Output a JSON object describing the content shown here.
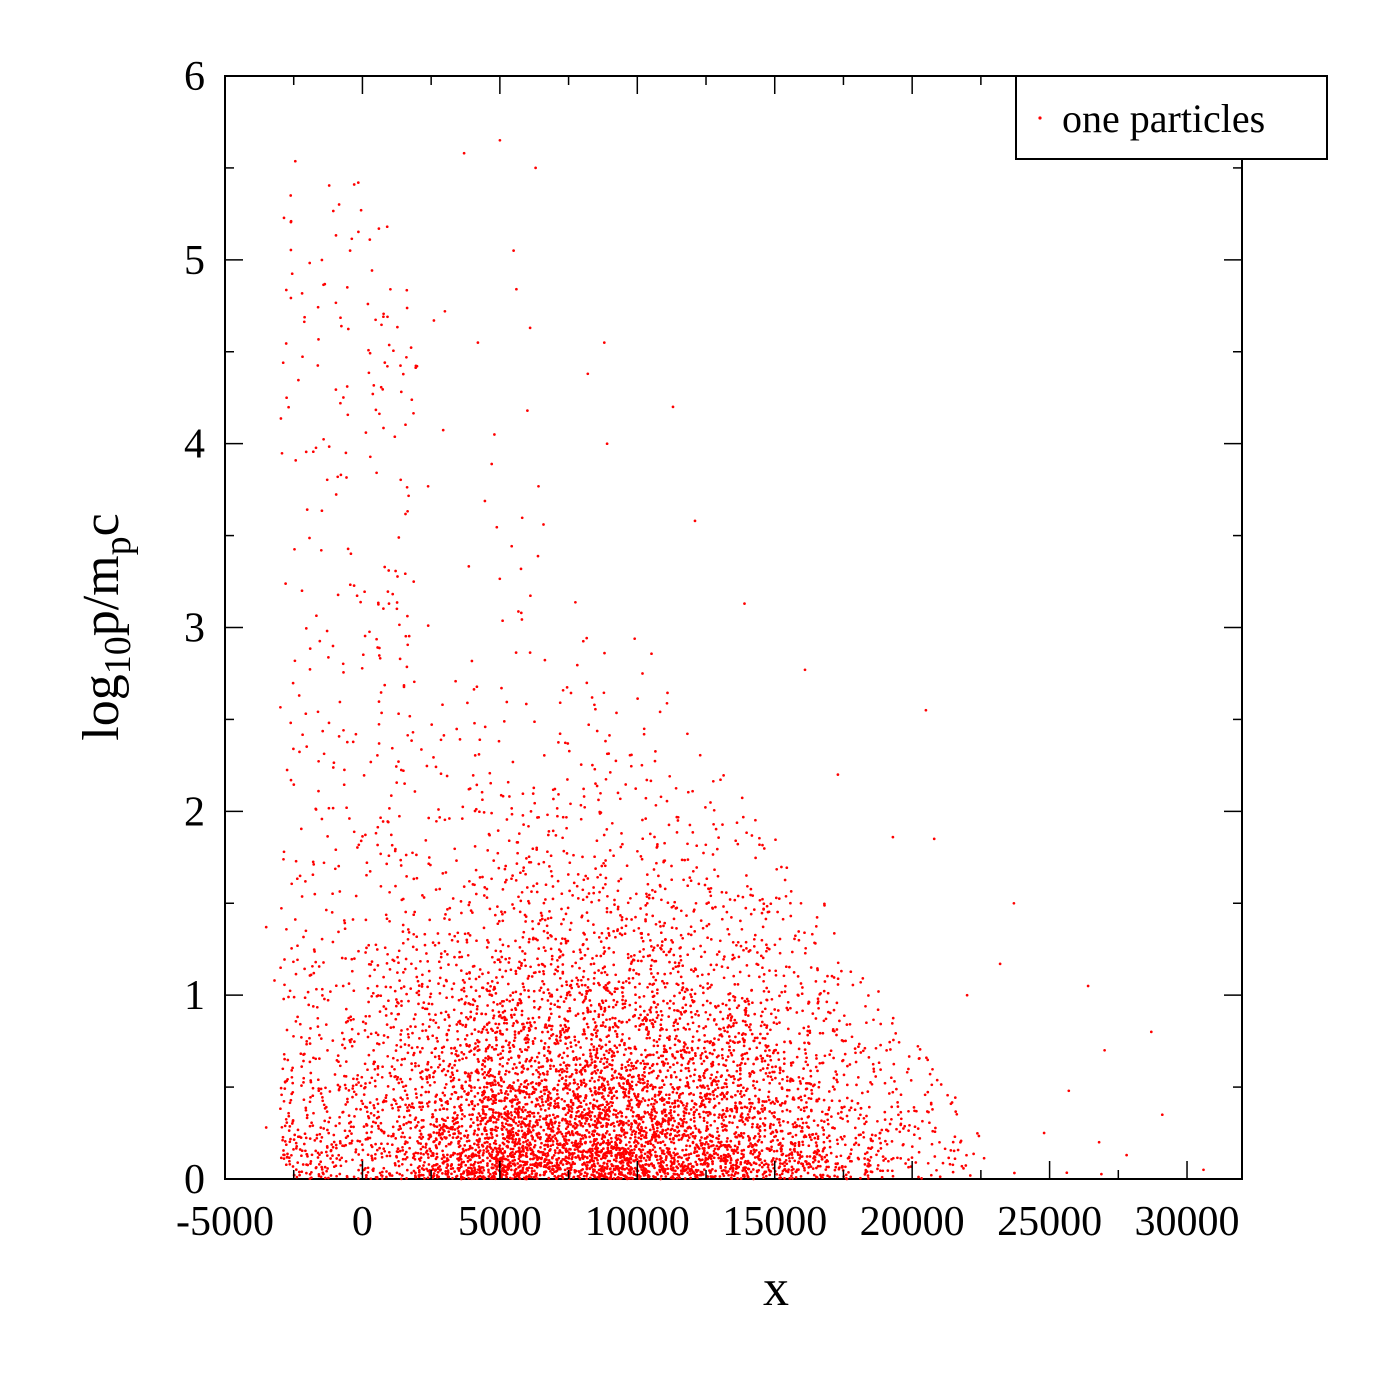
{
  "chart_data": {
    "type": "scatter",
    "title": "",
    "xlabel": "x",
    "ylabel": {
      "base": "log",
      "sub1": "10",
      "mid": "p/m",
      "sub2": "p",
      "end": "c"
    },
    "xlim": [
      -5000,
      32000
    ],
    "ylim": [
      0,
      6
    ],
    "x_ticks": [
      -5000,
      0,
      5000,
      10000,
      15000,
      20000,
      25000,
      30000
    ],
    "x_tick_labels": [
      "-5000",
      "0",
      "5000",
      "10000",
      "15000",
      "20000",
      "25000",
      "30000"
    ],
    "y_ticks": [
      0,
      1,
      2,
      3,
      4,
      5,
      6
    ],
    "y_tick_labels": [
      "0",
      "1",
      "2",
      "3",
      "4",
      "5",
      "6"
    ],
    "grid": false,
    "legend": {
      "position": "top-right"
    },
    "series": [
      {
        "name": "one particles",
        "color": "#ff0000",
        "marker": "dot",
        "points": [
          [
            -3500,
            1.37
          ],
          [
            -3500,
            0.28
          ],
          [
            -3200,
            1.08
          ],
          [
            -2600,
            2.17
          ],
          [
            -2300,
            2.63
          ],
          [
            -2200,
            3.2
          ],
          [
            -1900,
            0.22
          ],
          [
            -1700,
            1.18
          ],
          [
            -1600,
            2.11
          ],
          [
            -1400,
            1.72
          ],
          [
            -1100,
            1.45
          ],
          [
            -900,
            3.82
          ],
          [
            -800,
            4.22
          ],
          [
            -700,
            1.05
          ],
          [
            -600,
            3.95
          ],
          [
            -550,
            4.85
          ],
          [
            -450,
            5.05
          ],
          [
            -300,
            5.41
          ],
          [
            -150,
            5.42
          ],
          [
            -50,
            5.27
          ],
          [
            200,
            4.76
          ],
          [
            600,
            5.17
          ],
          [
            900,
            5.18
          ],
          [
            1600,
            4.47
          ],
          [
            2600,
            4.67
          ],
          [
            3000,
            4.72
          ],
          [
            3700,
            5.58
          ],
          [
            4200,
            4.55
          ],
          [
            4800,
            4.05
          ],
          [
            5000,
            5.65
          ],
          [
            5500,
            5.05
          ],
          [
            5600,
            4.84
          ],
          [
            6300,
            5.5
          ],
          [
            6000,
            4.18
          ],
          [
            6100,
            4.63
          ],
          [
            8800,
            4.55
          ],
          [
            8200,
            4.38
          ],
          [
            8900,
            4.0
          ],
          [
            11300,
            4.2
          ],
          [
            12100,
            3.58
          ],
          [
            13900,
            3.13
          ],
          [
            16100,
            2.77
          ],
          [
            17300,
            2.2
          ],
          [
            20500,
            2.55
          ],
          [
            19300,
            1.86
          ],
          [
            20800,
            1.85
          ],
          [
            22000,
            1.0
          ],
          [
            23200,
            1.17
          ],
          [
            23700,
            1.5
          ],
          [
            26400,
            1.05
          ],
          [
            27000,
            0.7
          ],
          [
            28700,
            0.8
          ],
          [
            29100,
            0.35
          ],
          [
            30600,
            0.05
          ],
          [
            24800,
            0.25
          ],
          [
            25700,
            0.48
          ],
          [
            26800,
            0.2
          ],
          [
            27800,
            0.13
          ]
        ],
        "generated_cloud": {
          "count": 7200,
          "seed": 20240611,
          "x_mode": 9500,
          "x_spread_left": 4200,
          "x_spread_right": 5200,
          "x_min": -3000,
          "x_max": 31000,
          "y_decay": 0.6,
          "front_slope_per_unit": 3.3e-06
        }
      }
    ]
  }
}
